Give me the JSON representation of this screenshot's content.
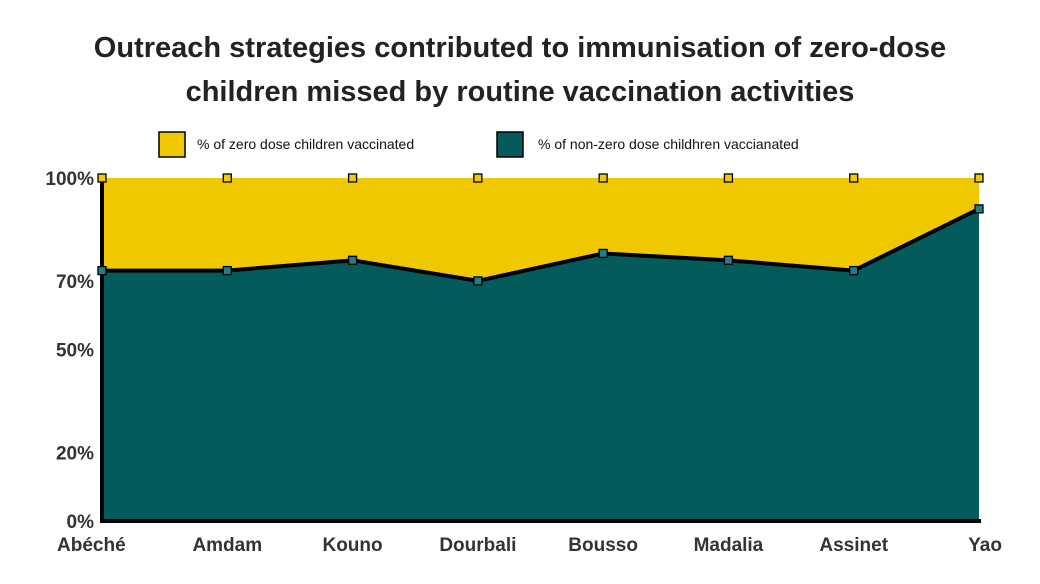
{
  "chart_data": {
    "type": "area",
    "stacked": true,
    "normalized_percent": true,
    "title_line1": "Outreach strategies contributed to immunisation of zero-dose",
    "title_line2": "children missed by routine vaccination activities",
    "categories": [
      "Abéché",
      "Amdam",
      "Kouno",
      "Dourbali",
      "Bousso",
      "Madalia",
      "Assinet",
      "Yao"
    ],
    "series": [
      {
        "name": "% of non-zero dose childhren vaccianated",
        "color": "#035b5b",
        "values": [
          73,
          73,
          76,
          70,
          78,
          76,
          73,
          91
        ]
      },
      {
        "name": "% of zero dose children vaccinated",
        "color": "#f0c800",
        "values": [
          27,
          27,
          24,
          30,
          22,
          24,
          27,
          9
        ]
      }
    ],
    "y_tick_labels": [
      "0%",
      "20%",
      "50%",
      "70%",
      "100%"
    ],
    "ylim": [
      0,
      100
    ],
    "legend_position": "top-center",
    "grid": false
  }
}
